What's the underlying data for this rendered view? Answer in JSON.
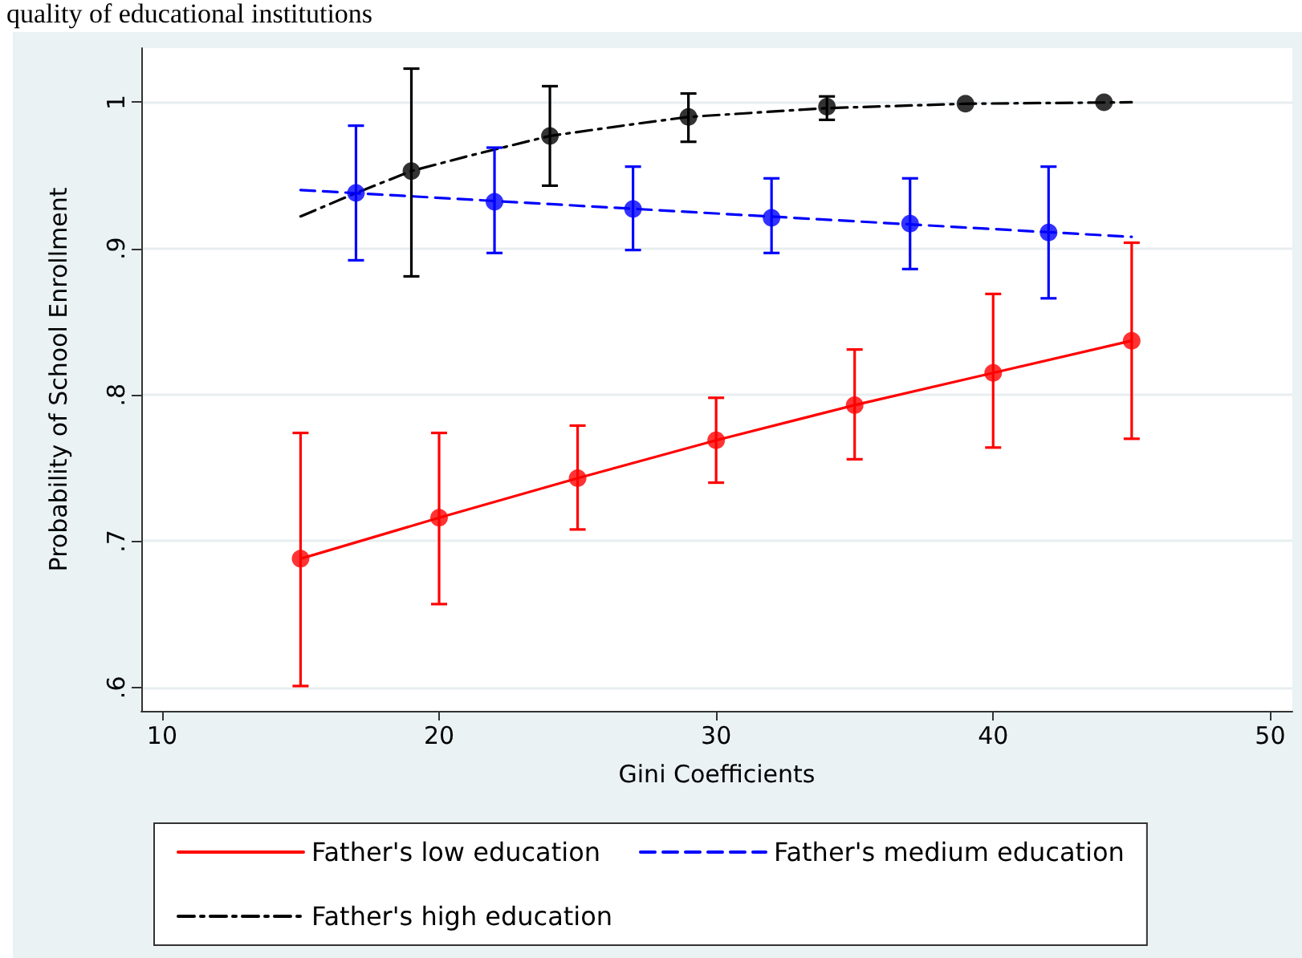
{
  "chart_data": {
    "type": "line",
    "title": "quality of educational institutions",
    "xlabel": "Gini Coefficients",
    "ylabel": "Probability of School Enrollment",
    "xlim": [
      9.25,
      50.8
    ],
    "xticks": [
      10,
      20,
      30,
      40,
      50
    ],
    "ylim": [
      0.584,
      1.037
    ],
    "yticks": [
      {
        "value": 0.6,
        "label": ".6"
      },
      {
        "value": 0.7,
        "label": ".7"
      },
      {
        "value": 0.8,
        "label": ".8"
      },
      {
        "value": 0.9,
        "label": ".9"
      },
      {
        "value": 1,
        "label": "1"
      }
    ],
    "grid": "y",
    "legend": "bottom",
    "series": [
      {
        "name": "Father's low education",
        "color": "#ff0000",
        "line_style": "solid",
        "marker": "none",
        "x": [
          15,
          20,
          25,
          30,
          35,
          40,
          45
        ],
        "values": [
          0.688,
          0.716,
          0.743,
          0.769,
          0.793,
          0.815,
          0.837
        ]
      },
      {
        "name": "Father's medium education",
        "color": "#0000ff",
        "line_style": "dashed",
        "marker": "none",
        "x": [
          15,
          45
        ],
        "values": [
          0.94,
          0.908
        ]
      },
      {
        "name": "Father's high education",
        "color": "#000000",
        "line_style": "dashdot",
        "marker": "none",
        "x": [
          15,
          17,
          19,
          21,
          24,
          27,
          29,
          34,
          39,
          45
        ],
        "values": [
          0.922,
          0.938,
          0.953,
          0.963,
          0.977,
          0.985,
          0.99,
          0.996,
          0.999,
          1.0
        ]
      },
      {
        "type": "scatter",
        "color": "#ff0000",
        "marker": "circle",
        "x": [
          15,
          20,
          25,
          30,
          35,
          40,
          45
        ],
        "values": [
          0.688,
          0.716,
          0.743,
          0.769,
          0.793,
          0.815,
          0.837
        ],
        "errors": [
          [
            0.601,
            0.774
          ],
          [
            0.657,
            0.774
          ],
          [
            0.708,
            0.779
          ],
          [
            0.74,
            0.798
          ],
          [
            0.756,
            0.831
          ],
          [
            0.764,
            0.869
          ],
          [
            0.77,
            0.904
          ]
        ]
      },
      {
        "type": "scatter",
        "color": "#0000ff",
        "marker": "circle",
        "x": [
          17,
          22,
          27,
          32,
          37,
          42
        ],
        "values": [
          0.938,
          0.932,
          0.927,
          0.921,
          0.917,
          0.911
        ],
        "errors": [
          [
            0.892,
            0.984
          ],
          [
            0.897,
            0.969
          ],
          [
            0.899,
            0.956
          ],
          [
            0.897,
            0.948
          ],
          [
            0.886,
            0.948
          ],
          [
            0.866,
            0.956
          ]
        ]
      },
      {
        "type": "scatter",
        "color": "#000000",
        "marker": "circle",
        "x": [
          19,
          24,
          29,
          34,
          39,
          44
        ],
        "values": [
          0.953,
          0.977,
          0.99,
          0.997,
          0.999,
          1.0
        ],
        "errors": [
          [
            0.881,
            1.023
          ],
          [
            0.943,
            1.011
          ],
          [
            0.973,
            1.006
          ],
          [
            0.988,
            1.004
          ],
          null,
          null
        ]
      }
    ]
  }
}
